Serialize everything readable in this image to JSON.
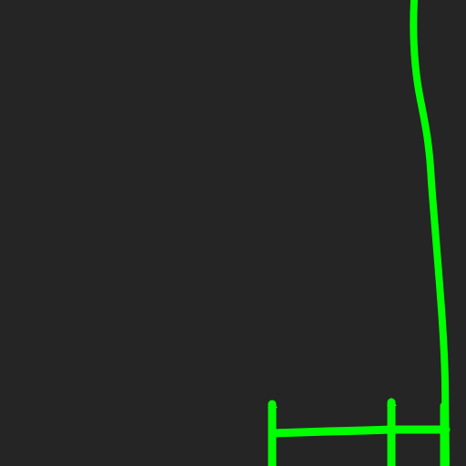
{
  "canvas": {
    "background": "#252525",
    "stroke_color": "#00ff00"
  }
}
